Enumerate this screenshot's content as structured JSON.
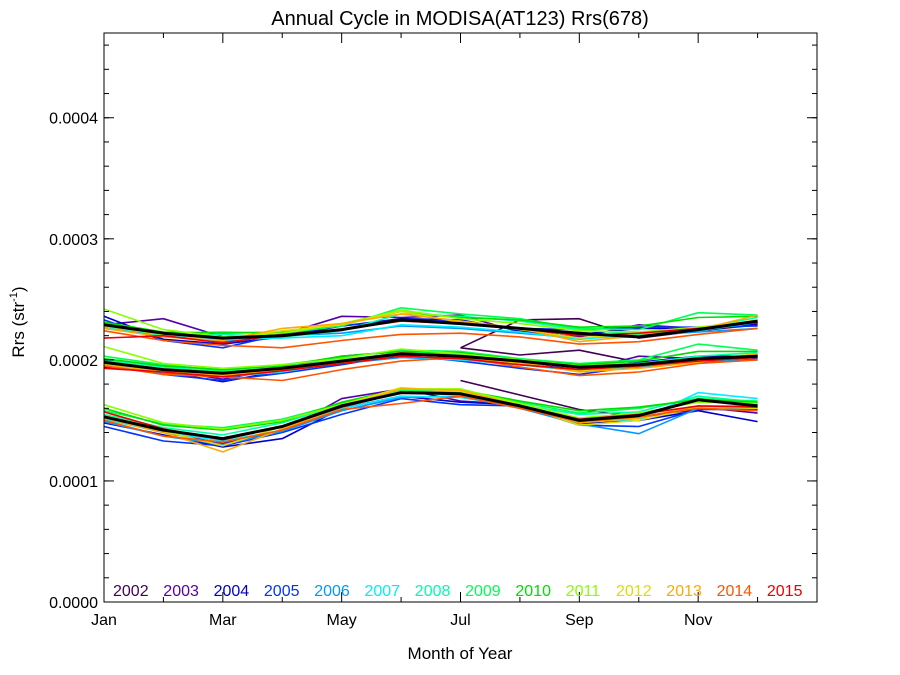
{
  "chart_data": {
    "type": "line",
    "title": "Annual Cycle in MODISA(AT123) Rrs(678)",
    "xlabel": "Month of Year",
    "ylabel": "Rrs (str",
    "ylabel_sup": "-1",
    "ylabel_close": ")",
    "xlim": [
      0,
      12
    ],
    "ylim": [
      0.0,
      0.00047
    ],
    "x_ticks": [
      {
        "label": "Jan",
        "value": 0
      },
      {
        "label": "Mar",
        "value": 2
      },
      {
        "label": "May",
        "value": 4
      },
      {
        "label": "Jul",
        "value": 6
      },
      {
        "label": "Sep",
        "value": 8
      },
      {
        "label": "Nov",
        "value": 10
      }
    ],
    "y_ticks": [
      {
        "label": "0.0000",
        "value": 0.0
      },
      {
        "label": "0.0001",
        "value": 0.0001
      },
      {
        "label": "0.0002",
        "value": 0.0002
      },
      {
        "label": "0.0003",
        "value": 0.0003
      },
      {
        "label": "0.0004",
        "value": 0.0004
      }
    ],
    "x_months": [
      0.0,
      1.0,
      2.0,
      3.0,
      4.0,
      5.0,
      6.0,
      7.0,
      8.0,
      9.0,
      10.0,
      11.0
    ],
    "mean_color": "#000000",
    "means": [
      {
        "name": "upper",
        "values": [
          0.000229,
          0.000222,
          0.000218,
          0.00022,
          0.000225,
          0.000233,
          0.00023,
          0.000226,
          0.000222,
          0.000219,
          0.000225,
          0.000232
        ]
      },
      {
        "name": "middle",
        "values": [
          0.000198,
          0.000192,
          0.000189,
          0.000193,
          0.000199,
          0.000205,
          0.000203,
          0.000199,
          0.000194,
          0.000196,
          0.000201,
          0.000203
        ]
      },
      {
        "name": "lower",
        "values": [
          0.000153,
          0.000142,
          0.000135,
          0.000145,
          0.000162,
          0.000173,
          0.000172,
          0.000162,
          0.00015,
          0.000154,
          0.000167,
          0.000162
        ]
      }
    ],
    "series": [
      {
        "name": "2002",
        "color": "#440055",
        "start": 6,
        "upper": [
          0.000231,
          0.000222,
          0.000216,
          0.00022,
          0.000226,
          0.000231,
          0.00021,
          0.000233,
          0.000234,
          0.000218,
          0.000224,
          0.000229
        ],
        "middle": [
          0.000199,
          0.000193,
          0.000188,
          0.000192,
          0.000198,
          0.000204,
          0.00021,
          0.000204,
          0.000208,
          0.000198,
          0.0002,
          0.000203
        ],
        "lower": [
          0.000155,
          0.000143,
          0.000134,
          0.000144,
          0.000161,
          0.000172,
          0.000183,
          0.000171,
          0.000159,
          0.000153,
          0.000159,
          0.000159
        ]
      },
      {
        "name": "2003",
        "color": "#5500aa",
        "upper": [
          0.000229,
          0.000234,
          0.000219,
          0.000221,
          0.000236,
          0.000235,
          0.000237,
          0.000223,
          0.000219,
          0.000229,
          0.000226,
          0.00023
        ],
        "middle": [
          0.000198,
          0.000192,
          0.000184,
          0.000193,
          0.000203,
          0.000207,
          0.000201,
          0.000197,
          0.000191,
          0.000203,
          0.000201,
          0.000204
        ],
        "lower": [
          0.000152,
          0.00014,
          0.000131,
          0.000141,
          0.000168,
          0.000176,
          0.000166,
          0.000163,
          0.000151,
          0.000152,
          0.000161,
          0.000156
        ]
      },
      {
        "name": "2004",
        "color": "#0000cc",
        "upper": [
          0.000236,
          0.000217,
          0.000213,
          0.000219,
          0.000228,
          0.000234,
          0.000233,
          0.000224,
          0.000221,
          0.000226,
          0.000226,
          0.00023
        ],
        "middle": [
          0.000194,
          0.00019,
          0.000182,
          0.000191,
          0.000199,
          0.000206,
          0.000202,
          0.000197,
          0.000192,
          0.000198,
          0.000203,
          0.000203
        ],
        "lower": [
          0.000148,
          0.000138,
          0.000128,
          0.000135,
          0.00016,
          0.00017,
          0.000165,
          0.000163,
          0.000147,
          0.00015,
          0.000158,
          0.000149
        ]
      },
      {
        "name": "2005",
        "color": "#0033ff",
        "upper": [
          0.000233,
          0.000216,
          0.00021,
          0.000221,
          0.000228,
          0.000233,
          0.000232,
          0.000226,
          0.000225,
          0.000227,
          0.000227,
          0.000228
        ],
        "middle": [
          0.000196,
          0.000188,
          0.000183,
          0.000189,
          0.000196,
          0.000204,
          0.000199,
          0.000193,
          0.000188,
          0.000195,
          0.000198,
          0.000201
        ],
        "lower": [
          0.000145,
          0.000133,
          0.000129,
          0.00014,
          0.000155,
          0.000168,
          0.000163,
          0.000162,
          0.000146,
          0.000145,
          0.000159,
          0.00016
        ]
      },
      {
        "name": "2006",
        "color": "#0099ff",
        "upper": [
          0.000226,
          0.00022,
          0.000215,
          0.00022,
          0.000222,
          0.000228,
          0.000226,
          0.000222,
          0.000218,
          0.00022,
          0.000223,
          0.000226
        ],
        "middle": [
          0.000197,
          0.000189,
          0.000186,
          0.000191,
          0.000197,
          0.000202,
          0.0002,
          0.000196,
          0.000191,
          0.000194,
          0.000199,
          0.0002
        ],
        "lower": [
          0.000149,
          0.000137,
          0.00013,
          0.000141,
          0.000158,
          0.000169,
          0.00017,
          0.00016,
          0.000147,
          0.000139,
          0.00016,
          0.000163
        ]
      },
      {
        "name": "2007",
        "color": "#00eeff",
        "upper": [
          0.000227,
          0.000221,
          0.000217,
          0.000218,
          0.00022,
          0.000229,
          0.000227,
          0.000223,
          0.000217,
          0.000221,
          0.000224,
          0.000231
        ],
        "middle": [
          0.000196,
          0.00019,
          0.000186,
          0.00019,
          0.000198,
          0.000203,
          0.0002,
          0.000196,
          0.000191,
          0.000195,
          0.000199,
          0.000202
        ],
        "lower": [
          0.000151,
          0.00014,
          0.000133,
          0.000142,
          0.00016,
          0.00017,
          0.000169,
          0.000161,
          0.000151,
          0.00015,
          0.000173,
          0.000168
        ]
      },
      {
        "name": "2008",
        "color": "#00ffaa",
        "upper": [
          0.000229,
          0.00022,
          0.000221,
          0.000219,
          0.000224,
          0.000238,
          0.000236,
          0.000232,
          0.000225,
          0.000221,
          0.000226,
          0.000235
        ],
        "middle": [
          0.0002,
          0.000194,
          0.00019,
          0.000194,
          0.0002,
          0.000206,
          0.000205,
          0.000199,
          0.000196,
          0.000197,
          0.000203,
          0.000206
        ],
        "lower": [
          0.000155,
          0.000144,
          0.000138,
          0.000148,
          0.000163,
          0.000173,
          0.000174,
          0.000163,
          0.000155,
          0.000157,
          0.00017,
          0.000165
        ]
      },
      {
        "name": "2009",
        "color": "#00ff55",
        "upper": [
          0.00023,
          0.000222,
          0.000223,
          0.000222,
          0.000228,
          0.000243,
          0.000238,
          0.000234,
          0.000226,
          0.000225,
          0.000239,
          0.000237
        ],
        "middle": [
          0.000203,
          0.000196,
          0.000191,
          0.000196,
          0.000202,
          0.000208,
          0.000207,
          0.000201,
          0.000197,
          0.0002,
          0.000213,
          0.000208
        ],
        "lower": [
          0.000158,
          0.000147,
          0.000144,
          0.000151,
          0.000164,
          0.000175,
          0.000173,
          0.000165,
          0.000156,
          0.00016,
          0.000168,
          0.000166
        ]
      },
      {
        "name": "2010",
        "color": "#00dd00",
        "upper": [
          0.000231,
          0.000223,
          0.000222,
          0.000223,
          0.000229,
          0.00024,
          0.000235,
          0.000233,
          0.000227,
          0.000228,
          0.000235,
          0.000236
        ],
        "middle": [
          0.000201,
          0.000195,
          0.000192,
          0.000195,
          0.000203,
          0.000207,
          0.000206,
          0.0002,
          0.000196,
          0.000199,
          0.000207,
          0.000207
        ],
        "lower": [
          0.00016,
          0.000146,
          0.000142,
          0.000149,
          0.000165,
          0.000176,
          0.000175,
          0.000166,
          0.000158,
          0.000161,
          0.000167,
          0.000165
        ]
      },
      {
        "name": "2011",
        "color": "#88ff00",
        "upper": [
          0.000242,
          0.000225,
          0.000219,
          0.000222,
          0.00023,
          0.000241,
          0.000234,
          0.00023,
          0.000224,
          0.000223,
          0.000227,
          0.000232
        ],
        "middle": [
          0.000211,
          0.000197,
          0.000193,
          0.000196,
          0.000201,
          0.000209,
          0.000205,
          0.0002,
          0.000195,
          0.000197,
          0.0002,
          0.000205
        ],
        "lower": [
          0.000163,
          0.000148,
          0.000143,
          0.00015,
          0.000163,
          0.000176,
          0.000176,
          0.000164,
          0.000152,
          0.000156,
          0.000165,
          0.000164
        ]
      },
      {
        "name": "2012",
        "color": "#dddd00",
        "upper": [
          0.000228,
          0.000221,
          0.000218,
          0.000224,
          0.000229,
          0.00024,
          0.000231,
          0.000225,
          0.000218,
          0.000222,
          0.000226,
          0.000233
        ],
        "middle": [
          0.000198,
          0.000191,
          0.000188,
          0.000193,
          0.000198,
          0.000206,
          0.000202,
          0.000197,
          0.000191,
          0.000195,
          0.000199,
          0.000202
        ],
        "lower": [
          0.000154,
          0.000141,
          0.000129,
          0.000145,
          0.000163,
          0.000177,
          0.000174,
          0.000163,
          0.000146,
          0.00015,
          0.000161,
          0.00016
        ]
      },
      {
        "name": "2013",
        "color": "#ffaa00",
        "upper": [
          0.000226,
          0.000219,
          0.000216,
          0.000226,
          0.00023,
          0.000238,
          0.000232,
          0.000226,
          0.000215,
          0.00022,
          0.000225,
          0.000237
        ],
        "middle": [
          0.000196,
          0.00019,
          0.000187,
          0.000192,
          0.000199,
          0.000206,
          0.000202,
          0.000198,
          0.00019,
          0.000193,
          0.000198,
          0.000205
        ],
        "lower": [
          0.000152,
          0.00014,
          0.000124,
          0.000143,
          0.000161,
          0.000176,
          0.000175,
          0.000162,
          0.000148,
          0.000152,
          0.000162,
          0.000162
        ]
      },
      {
        "name": "2014",
        "color": "#ff5500",
        "upper": [
          0.000224,
          0.000216,
          0.000212,
          0.00021,
          0.000216,
          0.000221,
          0.000222,
          0.000219,
          0.000213,
          0.000215,
          0.000221,
          0.000226
        ],
        "middle": [
          0.000195,
          0.000188,
          0.000186,
          0.000183,
          0.000192,
          0.000199,
          0.000202,
          0.000194,
          0.000187,
          0.00019,
          0.000197,
          0.0002
        ],
        "lower": [
          0.00015,
          0.000137,
          0.000132,
          0.000142,
          0.000159,
          0.000164,
          0.00017,
          0.00016,
          0.000149,
          0.000153,
          0.00016,
          0.000158
        ]
      },
      {
        "name": "2015",
        "color": "#ee0000",
        "upper": [
          0.000218,
          0.00022,
          0.000214,
          0.000221,
          0.000225,
          0.000232,
          0.00023,
          0.000226,
          0.00022,
          0.000222,
          0.000226,
          0.000231
        ],
        "middle": [
          0.000193,
          0.00019,
          0.000186,
          0.000191,
          0.000197,
          0.000203,
          0.000201,
          0.000196,
          0.000192,
          0.000195,
          0.000199,
          0.000202
        ],
        "lower": [
          0.000157,
          0.000143,
          0.000134,
          0.000145,
          0.000161,
          0.000173,
          0.000172,
          0.000162,
          0.000151,
          0.000155,
          0.000162,
          0.000161
        ]
      }
    ]
  }
}
